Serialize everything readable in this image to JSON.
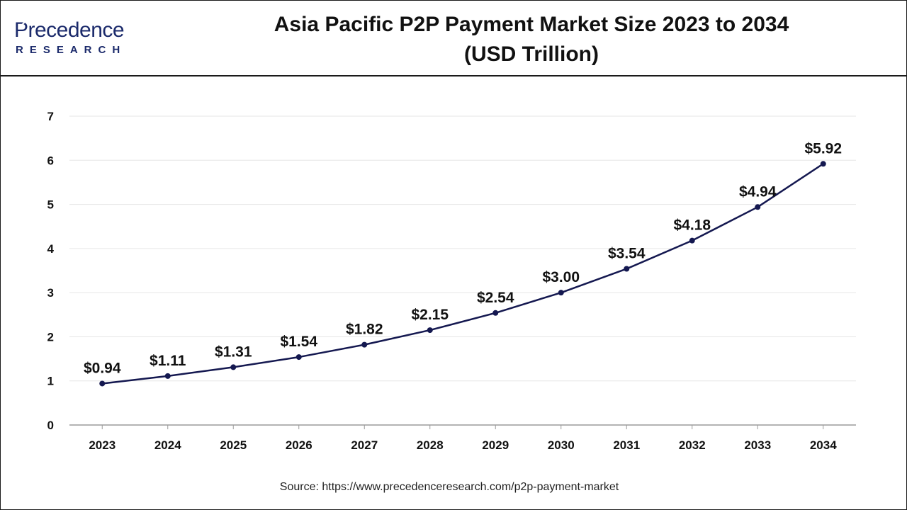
{
  "brand": {
    "name_main": "Precedence",
    "name_sub": "RESEARCH",
    "color": "#1b2a6b"
  },
  "title_line1": "Asia Pacific P2P Payment Market Size 2023 to 2034",
  "title_line2": "(USD Trillion)",
  "source": "Source: https://www.precedenceresearch.com/p2p-payment-market",
  "chart_data": {
    "type": "line",
    "title": "Asia Pacific P2P Payment Market Size 2023 to 2034 (USD Trillion)",
    "xlabel": "",
    "ylabel": "",
    "categories": [
      "2023",
      "2024",
      "2025",
      "2026",
      "2027",
      "2028",
      "2029",
      "2030",
      "2031",
      "2032",
      "2033",
      "2034"
    ],
    "series": [
      {
        "values": [
          0.94,
          1.11,
          1.31,
          1.54,
          1.82,
          2.15,
          2.54,
          3.0,
          3.54,
          4.18,
          4.94,
          5.92
        ],
        "labels": [
          "$0.94",
          "$1.11",
          "$1.31",
          "$1.54",
          "$1.82",
          "$2.15",
          "$2.54",
          "$3.00",
          "$3.54",
          "$4.18",
          "$4.94",
          "$5.92"
        ],
        "color": "#141850"
      }
    ],
    "ylim": [
      0,
      7
    ],
    "yticks": [
      "0",
      "1",
      "2",
      "3",
      "4",
      "5",
      "6",
      "7"
    ],
    "grid": true,
    "legend": "none"
  }
}
